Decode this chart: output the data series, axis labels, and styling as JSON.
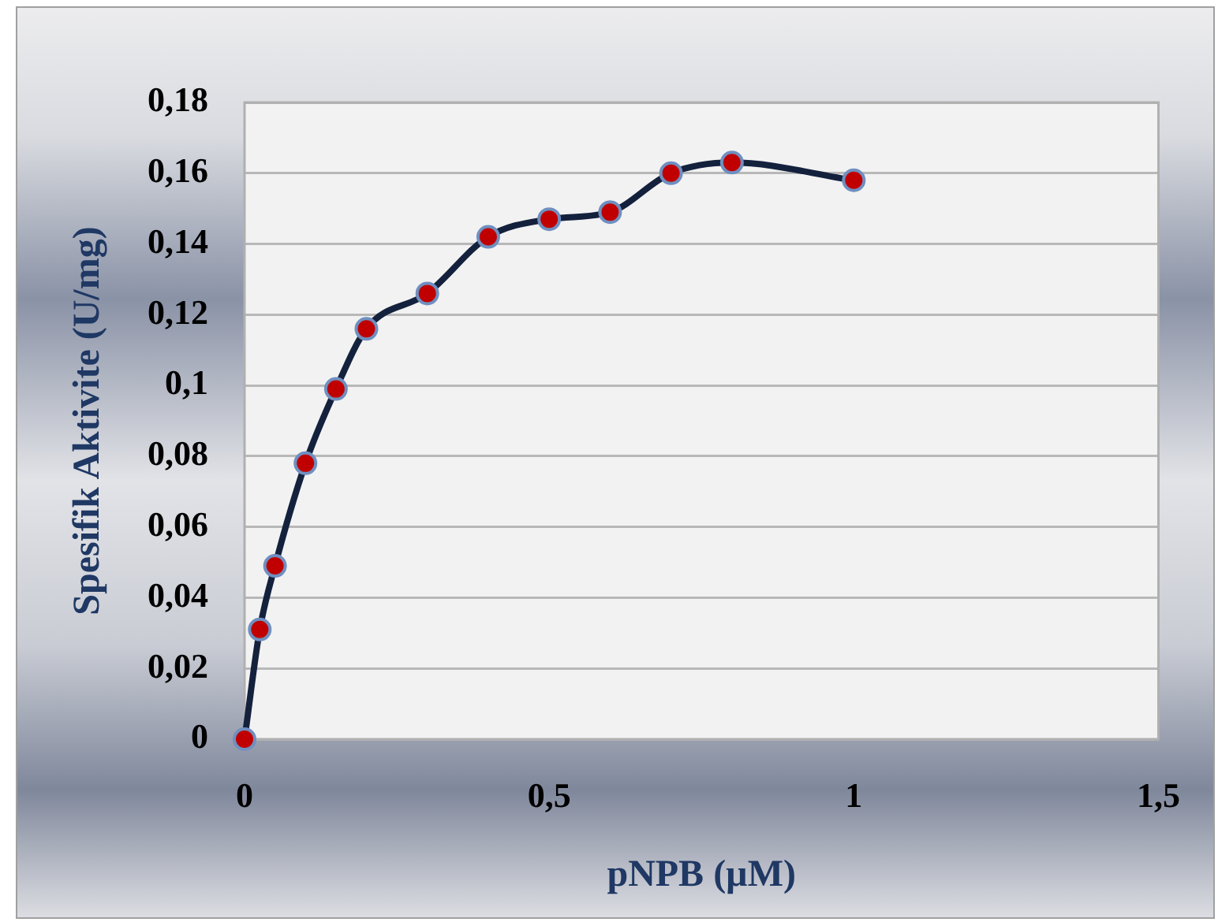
{
  "chart_data": {
    "type": "line",
    "xlabel": "pNPB (µM)",
    "ylabel": "Spesifik Aktivite (U/mg)",
    "x": [
      0,
      0.025,
      0.05,
      0.1,
      0.15,
      0.2,
      0.3,
      0.4,
      0.5,
      0.6,
      0.7,
      0.8,
      1
    ],
    "series": [
      {
        "color": "#14213d",
        "values": [
          0,
          0.031,
          0.049,
          0.078,
          0.099,
          0.116,
          0.126,
          0.142,
          0.147,
          0.149,
          0.16,
          0.163,
          0.158
        ]
      }
    ],
    "xlim": [
      0,
      1.5
    ],
    "xticks": [
      0,
      {
        "value": 0.5,
        "label": "0,5"
      },
      1,
      {
        "value": 1.5,
        "label": "1,5"
      }
    ],
    "ylim": [
      0,
      0.18
    ],
    "yticks": [
      0,
      {
        "value": 0.02,
        "label": "0,02"
      },
      {
        "value": 0.04,
        "label": "0,04"
      },
      {
        "value": 0.06,
        "label": "0,06"
      },
      {
        "value": 0.08,
        "label": "0,08"
      },
      {
        "value": 0.1,
        "label": "0,1"
      },
      {
        "value": 0.12,
        "label": "0,12"
      },
      {
        "value": 0.14,
        "label": "0,14"
      },
      {
        "value": 0.16,
        "label": "0,16"
      },
      {
        "value": 0.18,
        "label": "0,18"
      }
    ],
    "grid": "y",
    "legend": false,
    "marker": "circle",
    "line_style": "solid"
  }
}
